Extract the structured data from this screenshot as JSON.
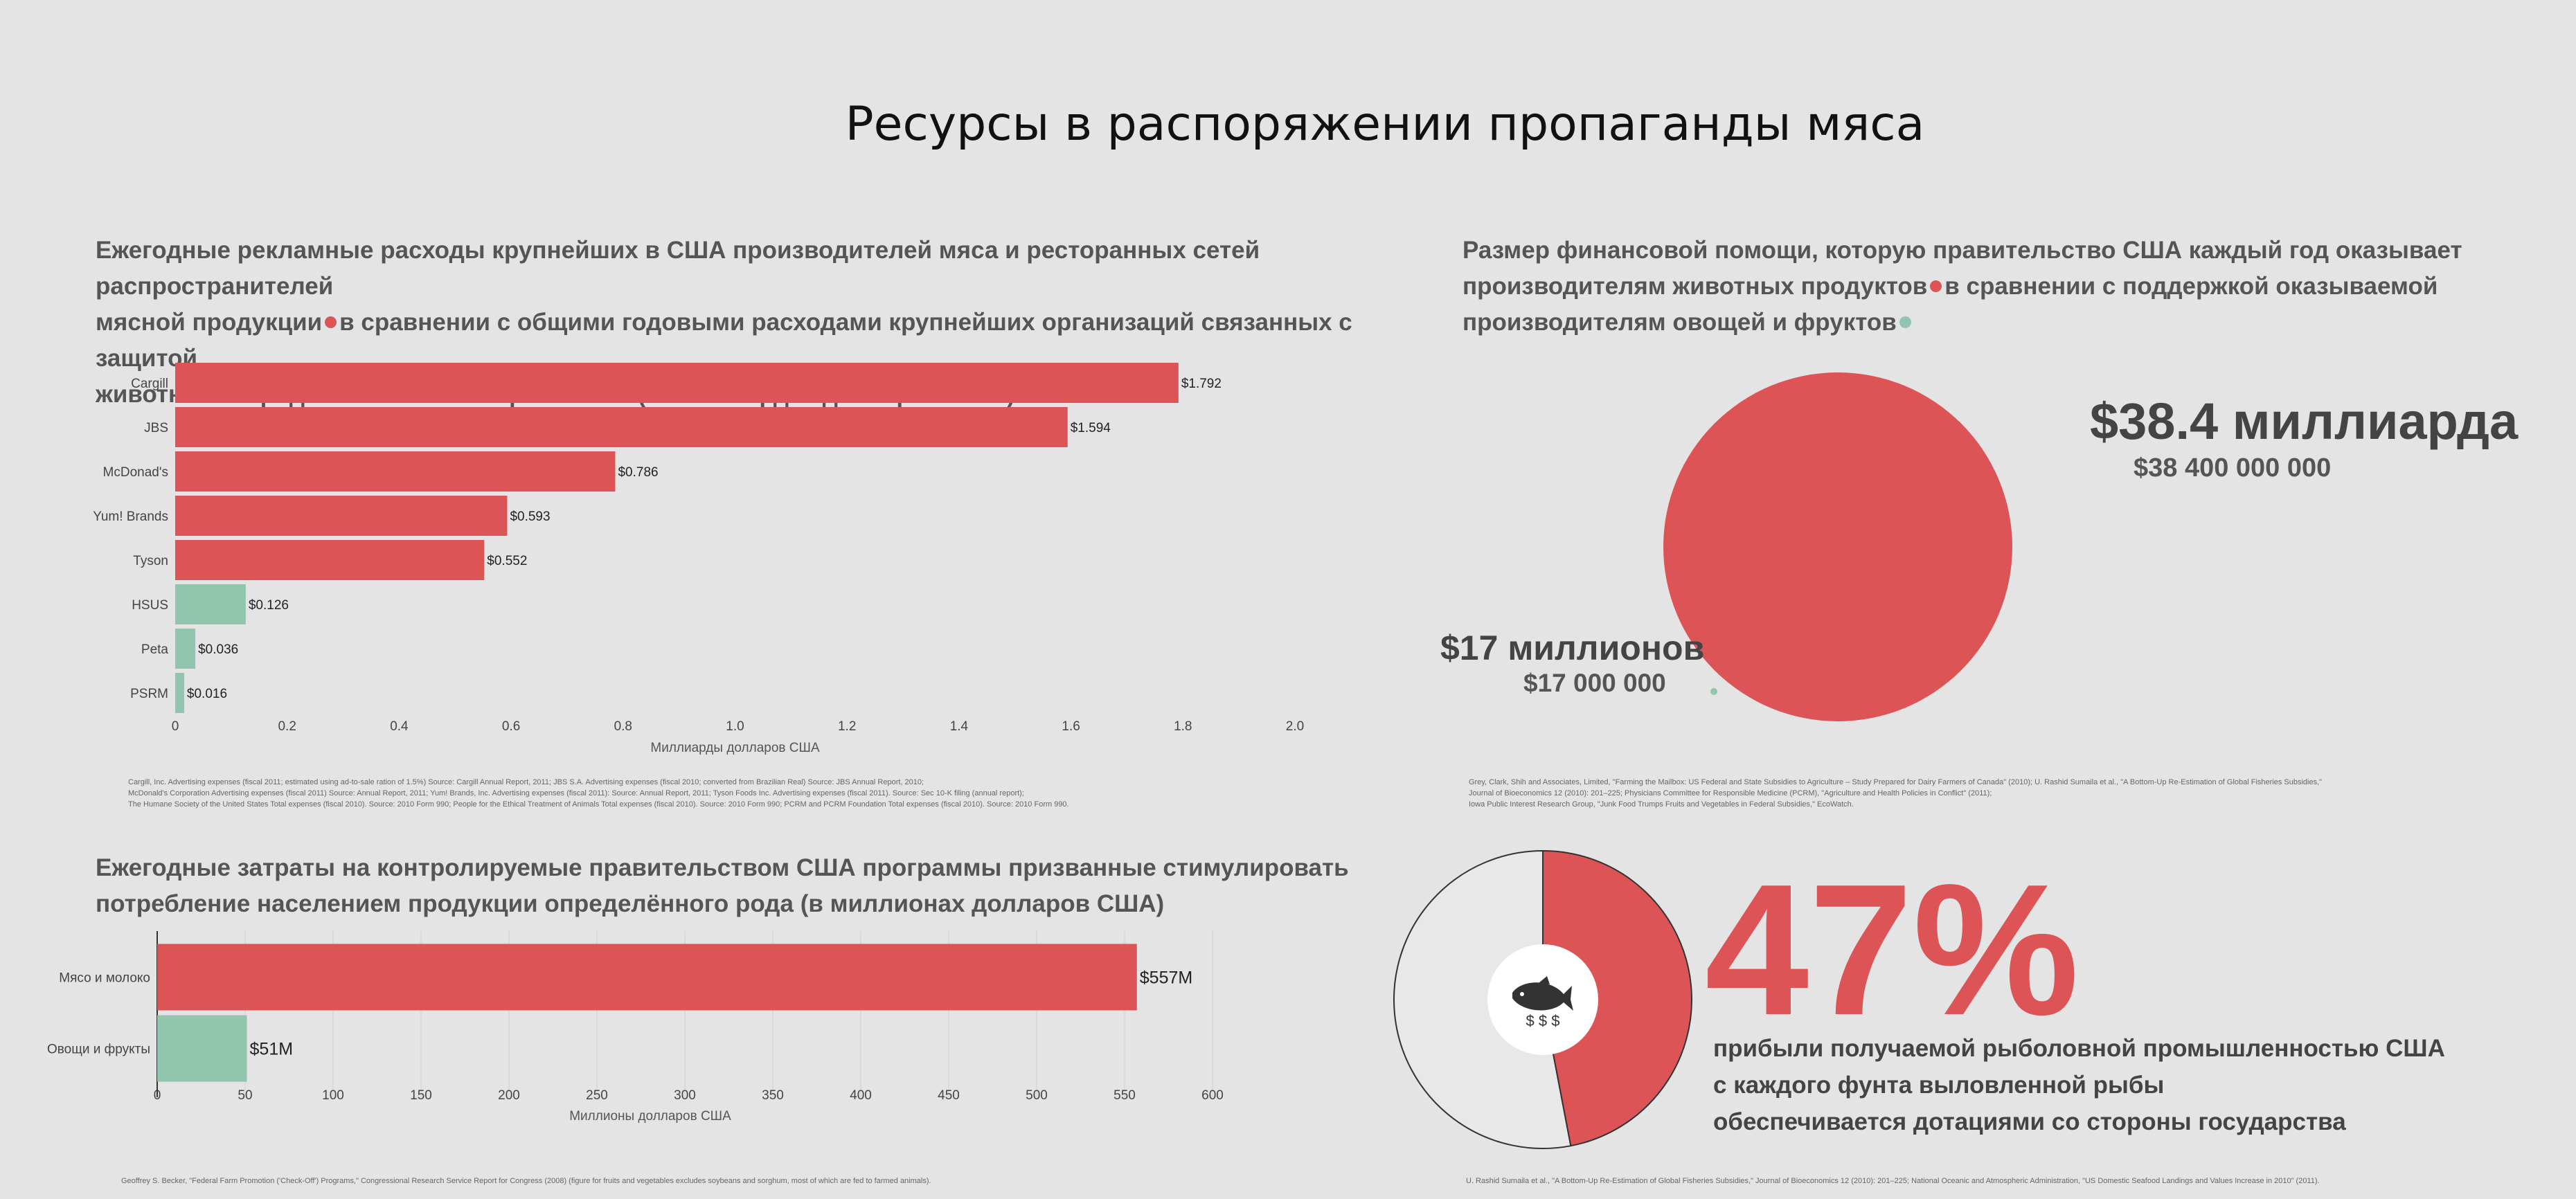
{
  "title": "Ресурсы в распоряжении пропаганды мяса",
  "colors": {
    "red": "#dd5456",
    "green": "#92c5ad",
    "bg": "#e4e4e4"
  },
  "panel1": {
    "heading_lines": [
      "Ежегодные рекламные расходы крупнейших в США производителей мяса и ресторанных сетей распространителей",
      "мясной продукции",
      "в сравнении с общими годовыми расходами крупнейших организаций связанных с защитой",
      "животных и продвижением вегетарианства",
      "(в миллиардах долларов США)"
    ],
    "sources": [
      "Cargill, Inc. Advertising expenses (fiscal 2011; estimated using ad-to-sale ration of 1.5%) Source: Cargill Annual Report, 2011;  JBS S.A. Advertising expenses (fiscal 2010; converted from Brazilian Real) Source: JBS Annual Report, 2010;",
      "McDonald's Corporation Advertising expenses (fiscal 2011) Source: Annual Report, 2011; Yum! Brands, Inc. Advertising expenses (fiscal 2011): Source: Annual Report, 2011; Tyson Foods Inc. Advertising expenses (fiscal 2011). Source: Sec 10-K filing (annual report);",
      "The Humane Society of the United States Total expenses (fiscal 2010). Source: 2010 Form 990;  People for the Ethical Treatment of Animals Total expenses (fiscal 2010). Source: 2010 Form 990; PCRM and PCRM Foundation Total expenses (fiscal 2010). Source: 2010 Form 990."
    ]
  },
  "panel2": {
    "heading_lines": [
      "Размер финансовой помощи, которую правительство США каждый год оказывает",
      "производителям животных продуктов",
      "в сравнении с поддержкой оказываемой",
      "производителям овощей и фруктов"
    ],
    "big_label": "$38.4 миллиарда",
    "big_sub": "$38 400 000 000",
    "small_label": "$17 миллионов",
    "small_sub": "$17 000 000",
    "sources": [
      "Grey, Clark, Shih and Associates, Limited, \"Farming the Mailbox: US Federal and State Subsidies to Agriculture – Study Prepared for Dairy Farmers of Canada\" (2010); U. Rashid Sumaila et al., \"A Bottom-Up Re-Estimation of Global Fisheries Subsidies,\"",
      "Journal of Bioeconomics 12 (2010): 201–225; Physicians Committee for Responsible Medicine (PCRM), \"Agriculture and Health Policies in Conflict\" (2011);",
      "Iowa Public Interest Research Group, \"Junk Food Trumps Fruits and Vegetables in Federal Subsidies,\" EcoWatch."
    ]
  },
  "panel3": {
    "heading_lines": [
      "Ежегодные затраты на контролируемые правительством США программы призванные стимулировать",
      "потребление населением продукции определённого рода (в миллионах долларов США)"
    ],
    "source": "Geoffrey S. Becker, \"Federal Farm Promotion ('Check-Off') Programs,\" Congressional Research Service Report for Congress (2008) (figure for fruits and vegetables excludes soybeans and sorghum, most of which are fed to farmed animals)."
  },
  "panel4": {
    "percent_label": "47%",
    "text_lines": [
      "прибыли получаемой рыболовной промышленностью США",
      "с каждого фунта выловленной рыбы",
      "обеспечивается дотациями со стороны государства"
    ],
    "dollar_signs": "$ $ $",
    "icon": "fish-icon",
    "source": "U. Rashid Sumaila et al., \"A Bottom-Up Re-Estimation of Global Fisheries Subsidies,\" Journal of Bioeconomics 12 (2010): 201–225; National Oceanic and Atmospheric Administration, \"US Domestic Seafood Landings and Values Increase in 2010\" (2011)."
  },
  "chart_data": [
    {
      "type": "bar",
      "orientation": "horizontal",
      "categories": [
        "Cargill",
        "JBS",
        "McDonad's",
        "Yum! Brands",
        "Tyson",
        "HSUS",
        "Peta",
        "PSRM"
      ],
      "values": [
        1.792,
        1.594,
        0.786,
        0.593,
        0.552,
        0.126,
        0.036,
        0.016
      ],
      "value_labels": [
        "$1.792",
        "$1.594",
        "$0.786",
        "$0.593",
        "$0.552",
        "$0.126",
        "$0.036",
        "$0.016"
      ],
      "groups": [
        "meat",
        "meat",
        "meat",
        "meat",
        "meat",
        "animal",
        "animal",
        "animal"
      ],
      "xlabel": "Миллиарды долларов США",
      "xlim": [
        0,
        2.0
      ],
      "xticks": [
        "0",
        "0.2",
        "0.4",
        "0.6",
        "0.8",
        "1.0",
        "1.2",
        "1.4",
        "1.6",
        "1.8",
        "2.0"
      ]
    },
    {
      "type": "bubble",
      "values_usd": [
        38400000000,
        17000000
      ],
      "groups": [
        "meat",
        "plant"
      ]
    },
    {
      "type": "bar",
      "orientation": "horizontal",
      "categories": [
        "Мясо и молоко",
        "Овощи и фрукты"
      ],
      "values": [
        557,
        51
      ],
      "value_labels": [
        "$557M",
        "$51M"
      ],
      "groups": [
        "meat",
        "plant"
      ],
      "xlabel": "Миллионы долларов США",
      "xlim": [
        0,
        600
      ],
      "xticks": [
        "0",
        "50",
        "100",
        "150",
        "200",
        "250",
        "300",
        "350",
        "400",
        "450",
        "500",
        "550",
        "600"
      ],
      "grid": true
    },
    {
      "type": "pie",
      "values": [
        47,
        53
      ],
      "labels": [
        "47%",
        ""
      ]
    }
  ]
}
